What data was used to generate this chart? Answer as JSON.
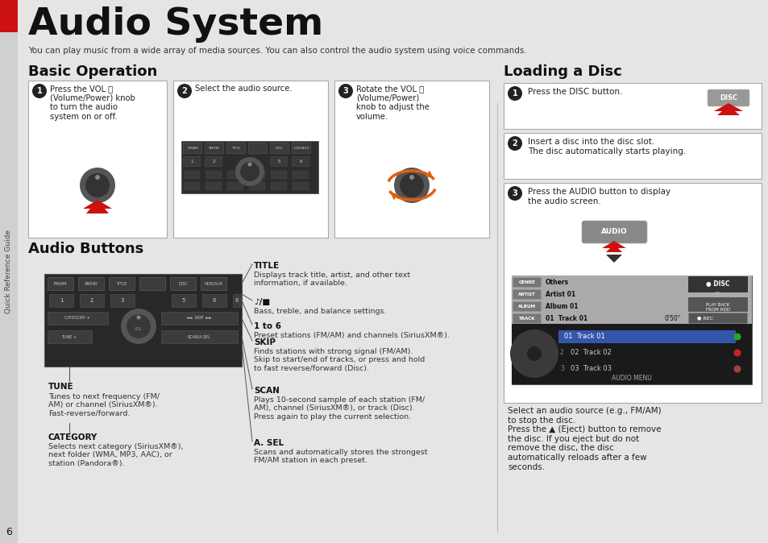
{
  "bg_color": "#e5e5e5",
  "white": "#ffffff",
  "sidebar_color": "#d0d0d0",
  "red_accent": "#cc1111",
  "dark_panel": "#2a2a2a",
  "title": "Audio System",
  "subtitle": "You can play music from a wide array of media sources. You can also control the audio system using voice commands.",
  "section1_title": "Basic Operation",
  "section2_title": "Audio Buttons",
  "section3_title": "Loading a Disc",
  "page_number": "6",
  "sidebar_text": "Quick Reference Guide",
  "step1_text": "Press the VOL ⓘ\n(Volume/Power) knob\nto turn the audio\nsystem on or off.",
  "step2_text": "Select the audio source.",
  "step3_text": "Rotate the VOL ⓘ\n(Volume/Power)\nknob to adjust the\nvolume.",
  "title_label": "TITLE",
  "title_desc": "Displays track title, artist, and other text\ninformation, if available.",
  "eq_label": "♪/■",
  "eq_desc": "Bass, treble, and balance settings.",
  "num_label": "1 to 6",
  "num_desc": "Preset stations (FM/AM) and channels (SiriusXM®).",
  "skip_label": "SKIP",
  "skip_desc": "Finds stations with strong signal (FM/AM).\nSkip to start/end of tracks, or press and hold\nto fast reverse/forward (Disc).",
  "scan_label": "SCAN",
  "scan_desc": "Plays 10-second sample of each station (FM/\nAM), channel (SiriusXM®), or track (Disc).\nPress again to play the current selection.",
  "asel_label": "A. SEL",
  "asel_desc": "Scans and automatically stores the strongest\nFM/AM station in each preset.",
  "tune_label": "TUNE",
  "tune_desc": "Tunes to next frequency (FM/\nAM) or channel (SiriusXM®).\nFast-reverse/forward.",
  "category_label": "CATEGORY",
  "category_desc": "Selects next category (SiriusXM®),\nnext folder (WMA, MP3, AAC), or\nstation (Pandora®).",
  "load1_text": "Press the DISC button.",
  "load2_text": "Insert a disc into the disc slot.\nThe disc automatically starts playing.",
  "load3_text": "Press the AUDIO button to display\nthe audio screen.",
  "load_extra": "Select an audio source (e.g., FM/AM)\nto stop the disc.\nPress the ▲ (Eject) button to remove\nthe disc. If you eject but do not\nremove the disc, the disc\nautomatically reloads after a few\nseconds."
}
